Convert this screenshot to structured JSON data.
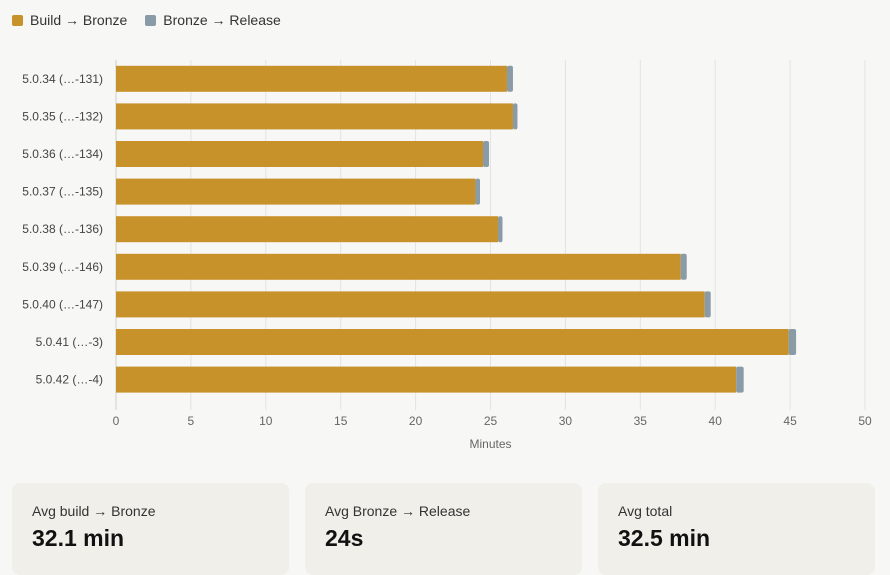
{
  "legend": {
    "series1": "Build → Bronze",
    "series2": "Bronze → Release"
  },
  "colors": {
    "series1": "#c8922b",
    "series2": "#8a9ba8",
    "grid": "#e3e3e0"
  },
  "chart_data": {
    "type": "bar",
    "orientation": "horizontal",
    "stacked": true,
    "categories": [
      "5.0.34 (…-131)",
      "5.0.35 (…-132)",
      "5.0.36 (…-134)",
      "5.0.37 (…-135)",
      "5.0.38 (…-136)",
      "5.0.39 (…-146)",
      "5.0.40 (…-147)",
      "5.0.41 (…-3)",
      "5.0.42 (…-4)"
    ],
    "series": [
      {
        "name": "Build → Bronze",
        "values": [
          26.1,
          26.5,
          24.5,
          24.0,
          25.5,
          37.7,
          39.3,
          44.9,
          41.4
        ]
      },
      {
        "name": "Bronze → Release",
        "values": [
          0.4,
          0.3,
          0.4,
          0.3,
          0.3,
          0.4,
          0.4,
          0.5,
          0.5
        ]
      }
    ],
    "xlabel": "Minutes",
    "xlim": [
      0,
      50
    ],
    "xticks": [
      0,
      5,
      10,
      15,
      20,
      25,
      30,
      35,
      40,
      45,
      50
    ],
    "grid": true,
    "legend_position": "top-left"
  },
  "stats": [
    {
      "label": "Avg build → Bronze",
      "value": "32.1 min"
    },
    {
      "label": "Avg Bronze → Release",
      "value": "24s"
    },
    {
      "label": "Avg total",
      "value": "32.5 min"
    }
  ]
}
